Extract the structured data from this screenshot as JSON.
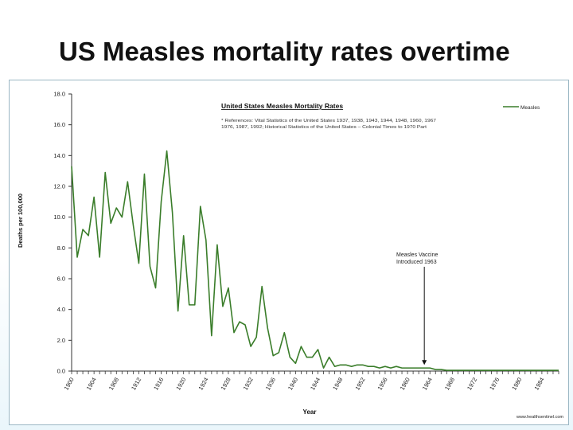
{
  "slide": {
    "title": "US Measles mortality rates overtime"
  },
  "chart_data": {
    "type": "line",
    "title": "United States Measles Mortality Rates",
    "references_line1": "* References: Vital Statistics of the United States 1937, 1938, 1943, 1944, 1948, 1960, 1967",
    "references_line2": "1976, 1987, 1992; Historical Statistics of the United States – Colonial Times to 1970 Part",
    "xlabel": "Year",
    "ylabel": "Deaths per 100,000",
    "ylim": [
      0,
      18
    ],
    "yticks": [
      "0.0",
      "2.0",
      "4.0",
      "6.0",
      "8.0",
      "10.0",
      "12.0",
      "14.0",
      "16.0",
      "18.0"
    ],
    "xlim": [
      1900,
      1987
    ],
    "xticks": [
      "1900",
      "1904",
      "1908",
      "1912",
      "1916",
      "1920",
      "1924",
      "1928",
      "1932",
      "1936",
      "1940",
      "1944",
      "1948",
      "1952",
      "1956",
      "1960",
      "1964",
      "1968",
      "1972",
      "1976",
      "1980",
      "1984"
    ],
    "legend": {
      "position": "top-right",
      "entries": [
        "Measles"
      ]
    },
    "annotation": {
      "line1": "Measles Vaccine",
      "line2": "Introduced 1963",
      "year": 1963
    },
    "source_credit": "www.healthsentinel.com",
    "series": [
      {
        "name": "Measles",
        "color": "#3a7d2a",
        "x": [
          1900,
          1901,
          1902,
          1903,
          1904,
          1905,
          1906,
          1907,
          1908,
          1909,
          1910,
          1911,
          1912,
          1913,
          1914,
          1915,
          1916,
          1917,
          1918,
          1919,
          1920,
          1921,
          1922,
          1923,
          1924,
          1925,
          1926,
          1927,
          1928,
          1929,
          1930,
          1931,
          1932,
          1933,
          1934,
          1935,
          1936,
          1937,
          1938,
          1939,
          1940,
          1941,
          1942,
          1943,
          1944,
          1945,
          1946,
          1947,
          1948,
          1949,
          1950,
          1951,
          1952,
          1953,
          1954,
          1955,
          1956,
          1957,
          1958,
          1959,
          1960,
          1961,
          1962,
          1963,
          1964,
          1965,
          1966,
          1967,
          1968,
          1969,
          1970,
          1971,
          1972,
          1973,
          1974,
          1975,
          1976,
          1977,
          1978,
          1979,
          1980,
          1981,
          1982,
          1983,
          1984,
          1985,
          1986,
          1987
        ],
        "values": [
          13.3,
          7.4,
          9.2,
          8.8,
          11.3,
          7.4,
          12.9,
          9.6,
          10.6,
          10.0,
          12.3,
          9.5,
          7.0,
          12.8,
          6.8,
          5.4,
          11.0,
          14.3,
          10.3,
          3.9,
          8.8,
          4.3,
          4.3,
          10.7,
          8.5,
          2.3,
          8.2,
          4.2,
          5.4,
          2.5,
          3.2,
          3.0,
          1.6,
          2.2,
          5.5,
          2.8,
          1.0,
          1.2,
          2.5,
          0.9,
          0.5,
          1.6,
          0.9,
          0.9,
          1.4,
          0.2,
          0.9,
          0.3,
          0.4,
          0.4,
          0.3,
          0.4,
          0.4,
          0.3,
          0.3,
          0.2,
          0.3,
          0.2,
          0.3,
          0.2,
          0.2,
          0.2,
          0.2,
          0.2,
          0.2,
          0.1,
          0.1,
          0.05,
          0.05,
          0.05,
          0.05,
          0.05,
          0.05,
          0.05,
          0.05,
          0.05,
          0.05,
          0.05,
          0.05,
          0.05,
          0.05,
          0.05,
          0.05,
          0.05,
          0.05,
          0.05,
          0.05,
          0.05
        ]
      }
    ]
  }
}
